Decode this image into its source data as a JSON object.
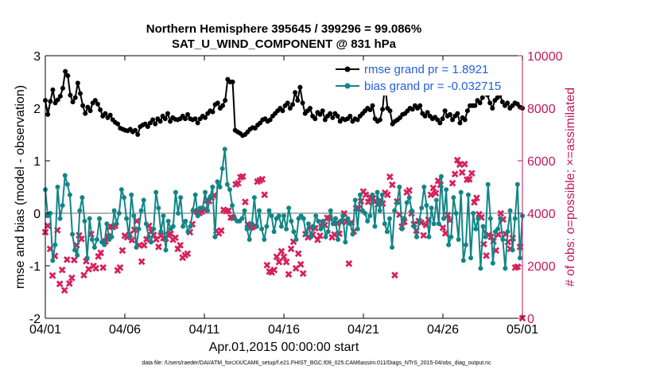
{
  "chart_data": {
    "type": "line",
    "title": "Northern Hemisphere 395645 / 399296 = 99.086%",
    "subtitle": "SAT_U_WIND_COMPONENT @ 831 hPa",
    "xlabel": "Apr.01,2015 00:00:00 start",
    "ylabel_left": "rmse and bias (model - observation)",
    "ylabel_right": "# of obs: o=possible; ×=assimilated",
    "xlim": [
      0,
      30
    ],
    "ylim_left": [
      -2,
      3
    ],
    "ylim_right": [
      0,
      10000
    ],
    "x_ticks": [
      0,
      5,
      10,
      15,
      20,
      25,
      30
    ],
    "x_tick_labels": [
      "04/01",
      "04/06",
      "04/11",
      "04/16",
      "04/21",
      "04/26",
      "05/01"
    ],
    "y_ticks_left": [
      -2,
      -1,
      0,
      1,
      2,
      3
    ],
    "y_tick_labels_left": [
      "-2",
      "-1",
      "0",
      "1",
      "2",
      "3"
    ],
    "y_ticks_right": [
      0,
      2000,
      4000,
      6000,
      8000,
      10000
    ],
    "y_tick_labels_right": [
      "0",
      "2000",
      "4000",
      "6000",
      "8000",
      "10000"
    ],
    "colors": {
      "rmse": "#000000",
      "bias": "#138586",
      "obs": "#d6215c",
      "zero_line": "#b3b3b3",
      "right_axis": "#c2185b"
    },
    "series": [
      {
        "name": "rmse grand pr = 1.8921",
        "axis": "left",
        "values": [
          2.15,
          1.88,
          2.13,
          2.35,
          2.1,
          2.16,
          2.23,
          2.38,
          2.7,
          2.62,
          2.25,
          2.12,
          2.2,
          2.48,
          2.28,
          2.05,
          1.9,
          2.02,
          1.95,
          2.1,
          2.15,
          2.08,
          1.97,
          1.85,
          1.9,
          1.82,
          1.87,
          1.78,
          1.73,
          1.7,
          1.62,
          1.6,
          1.58,
          1.57,
          1.6,
          1.55,
          1.58,
          1.5,
          1.65,
          1.68,
          1.7,
          1.65,
          1.72,
          1.78,
          1.7,
          1.8,
          1.75,
          1.85,
          1.8,
          1.9,
          1.75,
          1.82,
          1.79,
          1.78,
          1.8,
          1.85,
          1.8,
          1.88,
          1.8,
          1.78,
          1.8,
          1.72,
          1.8,
          1.85,
          1.82,
          1.9,
          1.95,
          1.93,
          2.07,
          2.1,
          2.0,
          2.05,
          2.15,
          2.55,
          2.5,
          2.5,
          1.58,
          1.55,
          1.52,
          1.48,
          1.5,
          1.55,
          1.6,
          1.63,
          1.62,
          1.68,
          1.72,
          1.78,
          1.8,
          1.75,
          1.78,
          1.85,
          1.9,
          1.95,
          2.0,
          1.95,
          2.05,
          2.1,
          2.0,
          2.07,
          2.3,
          2.15,
          2.4,
          2.1,
          1.9,
          1.95,
          2.0,
          1.85,
          1.8,
          1.92,
          1.88,
          1.95,
          1.78,
          1.85,
          1.9,
          1.82,
          1.9,
          1.85,
          1.75,
          1.8,
          1.78,
          1.8,
          1.85,
          1.75,
          1.8,
          1.78,
          1.85,
          1.9,
          1.95,
          2.0,
          1.97,
          2.05,
          1.8,
          1.75,
          1.78,
          1.98,
          2.45,
          2.0,
          1.95,
          1.7,
          1.75,
          1.78,
          1.82,
          1.88,
          1.9,
          1.95,
          2.0,
          1.98,
          2.05,
          2.0,
          2.05,
          1.9,
          1.85,
          1.92,
          1.85,
          1.8,
          1.83,
          1.78,
          1.72,
          1.8,
          1.95,
          1.85,
          1.88,
          1.78,
          1.85,
          1.9,
          1.72,
          1.82,
          1.78,
          1.95,
          2.05,
          2.05,
          2.05,
          2.15,
          2.1,
          2.2,
          2.45,
          2.25,
          2.1,
          2.0,
          2.15,
          2.2,
          2.25,
          2.12,
          2.05,
          2.1,
          2.0,
          2.05,
          2.1,
          2.08,
          2.02,
          2.0
        ]
      },
      {
        "name": "bias grand pr = -0.032715",
        "axis": "left",
        "values": [
          0.45,
          -0.05,
          0.0,
          -0.9,
          -0.6,
          0.5,
          -0.1,
          0.15,
          0.72,
          0.55,
          0.35,
          -0.4,
          -0.7,
          -0.8,
          0.05,
          0.3,
          -0.15,
          -0.85,
          -0.1,
          -0.5,
          -0.65,
          -0.5,
          -0.1,
          -0.55,
          -0.6,
          -0.2,
          -0.5,
          -0.45,
          0.05,
          -0.2,
          0.0,
          0.45,
          0.3,
          -0.1,
          -0.45,
          0.35,
          -0.05,
          -0.65,
          -0.3,
          0.05,
          0.25,
          -0.2,
          -0.45,
          -0.55,
          -0.3,
          0.4,
          0.1,
          -0.35,
          -0.05,
          -0.7,
          -0.15,
          -0.3,
          -0.25,
          0.4,
          0.0,
          0.3,
          -0.25,
          -0.15,
          -0.35,
          -0.25,
          0.05,
          0.35,
          -0.05,
          0.1,
          0.1,
          0.4,
          0.05,
          0.3,
          0.5,
          -0.45,
          0.6,
          0.5,
          0.85,
          1.22,
          0.55,
          0.45,
          0.15,
          -0.1,
          -0.15,
          -0.15,
          -0.1,
          0.05,
          -0.3,
          -0.5,
          -0.2,
          0.3,
          -0.25,
          0.05,
          -0.3,
          -0.5,
          -0.25,
          0.05,
          -0.05,
          -0.35,
          -0.1,
          -0.05,
          -0.25,
          -0.05,
          -0.3,
          0.1,
          -0.15,
          -0.35,
          -0.5,
          -0.1,
          -0.05,
          -0.1,
          -0.4,
          -0.2,
          -0.45,
          -0.25,
          -0.05,
          -0.15,
          -0.3,
          -0.15,
          -0.45,
          -0.35,
          0.05,
          -0.2,
          -0.1,
          -0.5,
          -0.15,
          -0.05,
          -0.55,
          -0.1,
          -0.2,
          -0.4,
          0.25,
          -0.3,
          0.35,
          0.05,
          0.0,
          -0.15,
          -0.05,
          0.35,
          -0.25,
          0.4,
          0.05,
          0.35,
          -0.2,
          -0.35,
          -0.1,
          -0.65,
          0.05,
          0.2,
          0.5,
          -0.3,
          -0.1,
          0.2,
          0.3,
          0.05,
          -0.25,
          -0.45,
          -0.15,
          0.1,
          0.5,
          0.15,
          -0.45,
          0.1,
          -0.2,
          0.25,
          -0.2,
          0.7,
          -0.1,
          0.45,
          -0.6,
          -0.45,
          0.3,
          0.0,
          -0.5,
          0.4,
          -0.9,
          -0.6,
          0.35,
          -0.85,
          0.0,
          -0.3,
          -0.1,
          -1.05,
          -0.25,
          -0.45,
          0.55,
          -0.1,
          -0.95,
          -0.35,
          -0.3,
          -0.1,
          -0.5,
          -1.05,
          -0.35,
          0.05,
          -0.7,
          -0.1,
          0.55,
          -0.85,
          -0.05
        ]
      },
      {
        "name": "# of obs assimilated",
        "axis": "right",
        "values": [
          3280,
          3520,
          2630,
          1620,
          2360,
          3350,
          1300,
          1840,
          1060,
          2220,
          1320,
          1530,
          2210,
          2780,
          3150,
          3020,
          1640,
          2170,
          1870,
          3190,
          1980,
          1890,
          2350,
          2480,
          1920,
          2920,
          3120,
          3490,
          3470,
          3510,
          1820,
          1920,
          2580,
          3140,
          3080,
          3180,
          2970,
          3360,
          3700,
          2780,
          2150,
          2780,
          3000,
          3510,
          3310,
          3170,
          3000,
          2710,
          3140,
          3050,
          3030,
          3160,
          3210,
          2990,
          3060,
          2630,
          2770,
          2310,
          2390,
          2460,
          3280,
          3570,
          4090,
          4040,
          4000,
          4060,
          4120,
          4490,
          4450,
          4590,
          4670,
          3320,
          3230,
          3330,
          4120,
          4080,
          4090,
          3830,
          3820,
          5090,
          5140,
          5370,
          5390,
          4430,
          3570,
          3440,
          3470,
          3510,
          5200,
          5240,
          5290,
          4690,
          2020,
          1770,
          1750,
          1830,
          2340,
          2140,
          2550,
          2340,
          2130,
          1660,
          2640,
          2910,
          1890,
          2460,
          2050,
          1700,
          3200,
          3070,
          3460,
          3180,
          3430,
          2980,
          3140,
          3620,
          3550,
          3820,
          3810,
          3070,
          3180,
          3620,
          3210,
          3650,
          3990,
          3670,
          2080,
          3630,
          3310,
          4180,
          4160,
          4450,
          4820,
          4700,
          4430,
          4590,
          4560,
          4460,
          4320,
          4480,
          4360,
          4780,
          4700,
          5380,
          5080,
          1640,
          4440,
          3940,
          3490,
          3660,
          4790,
          4860,
          3980,
          3570,
          3340,
          3690,
          3640,
          3150,
          3550,
          3750,
          4700,
          4960,
          4760,
          5230,
          5070,
          3440,
          3220,
          3920,
          3720,
          5130,
          5480,
          6010,
          5850,
          5540,
          5860,
          5270,
          5290,
          5520,
          4410,
          4580,
          3950,
          3840,
          2820,
          2380,
          3160,
          3090,
          2930,
          2570,
          3180,
          3990,
          3760,
          3200,
          2900,
          2640,
          3050,
          1930,
          1950,
          2710,
          0
        ]
      }
    ],
    "legend_position": "top-right",
    "grid": false,
    "zero_line": true,
    "footer": "data file: /Users/raeder/DAI/ATM_forcXX/CAM6_setup/f.e21.FHIST_BGC.f09_025.CAM6assim.011/Diags_NTrS_2015-04/obs_diag_output.nc"
  }
}
